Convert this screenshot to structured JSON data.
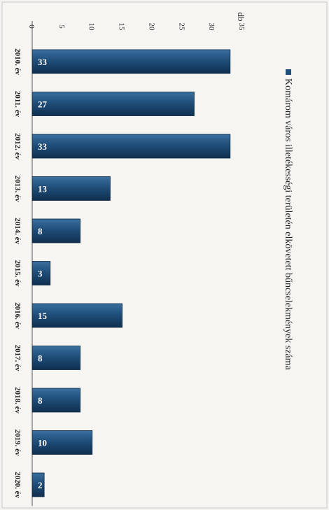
{
  "chart_data": {
    "type": "bar",
    "orientation": "rotated-90-clockwise",
    "categories": [
      "2010. év",
      "2011. év",
      "2012. év",
      "2013. év",
      "2014. év",
      "2015. év",
      "2016. év",
      "2017. év",
      "2018. év",
      "2019. év",
      "2020. év"
    ],
    "values": [
      33,
      27,
      33,
      13,
      8,
      3,
      15,
      8,
      8,
      10,
      2
    ],
    "series": [
      {
        "name": "Komárom város illetékességi területén elkövetett bűncselekmények száma",
        "values": [
          33,
          27,
          33,
          13,
          8,
          3,
          15,
          8,
          8,
          10,
          2
        ]
      }
    ],
    "ylabel": "db",
    "ylim": [
      0,
      35
    ],
    "yticks": [
      0,
      5,
      10,
      15,
      20,
      25,
      30,
      35
    ],
    "grid": false,
    "legend": "right",
    "colors": {
      "bar": "#1f4e79",
      "bar_dark": "#0f2f4f",
      "bar_light": "#3b6fa0"
    }
  }
}
